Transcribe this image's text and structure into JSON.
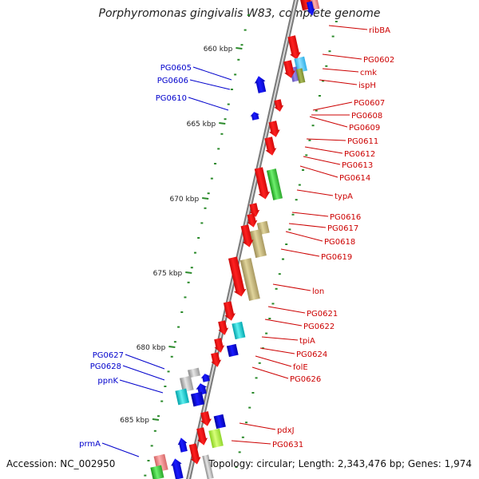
{
  "title": "Porphyromonas gingivalis W83, complete genome",
  "accession": "Accession: NC_002950",
  "topology": "Topology: circular; Length: 2,343,476 bp; Genes: 1,974",
  "colors": {
    "forward_label": "#0000cc",
    "reverse_label": "#cc0000",
    "tick": "#2a8a2a"
  },
  "ticks": [
    {
      "label": "660 kbp"
    },
    {
      "label": "665 kbp"
    },
    {
      "label": "670 kbp"
    },
    {
      "label": "675 kbp"
    },
    {
      "label": "680 kbp"
    },
    {
      "label": "685 kbp"
    }
  ],
  "left_labels": [
    {
      "text": "PG0605"
    },
    {
      "text": "PG0606"
    },
    {
      "text": "PG0610"
    },
    {
      "text": "PG0627"
    },
    {
      "text": "PG0628"
    },
    {
      "text": "ppnK"
    },
    {
      "text": "prmA"
    }
  ],
  "right_labels": [
    {
      "text": "ribBA"
    },
    {
      "text": "PG0602"
    },
    {
      "text": "cmk"
    },
    {
      "text": "ispH"
    },
    {
      "text": "PG0607"
    },
    {
      "text": "PG0608"
    },
    {
      "text": "PG0609"
    },
    {
      "text": "PG0611"
    },
    {
      "text": "PG0612"
    },
    {
      "text": "PG0613"
    },
    {
      "text": "PG0614"
    },
    {
      "text": "typA"
    },
    {
      "text": "PG0616"
    },
    {
      "text": "PG0617"
    },
    {
      "text": "PG0618"
    },
    {
      "text": "PG0619"
    },
    {
      "text": "lon"
    },
    {
      "text": "PG0621"
    },
    {
      "text": "PG0622"
    },
    {
      "text": "tpiA"
    },
    {
      "text": "PG0624"
    },
    {
      "text": "folE"
    },
    {
      "text": "PG0626"
    },
    {
      "text": "pdxJ"
    },
    {
      "text": "PG0631"
    }
  ]
}
